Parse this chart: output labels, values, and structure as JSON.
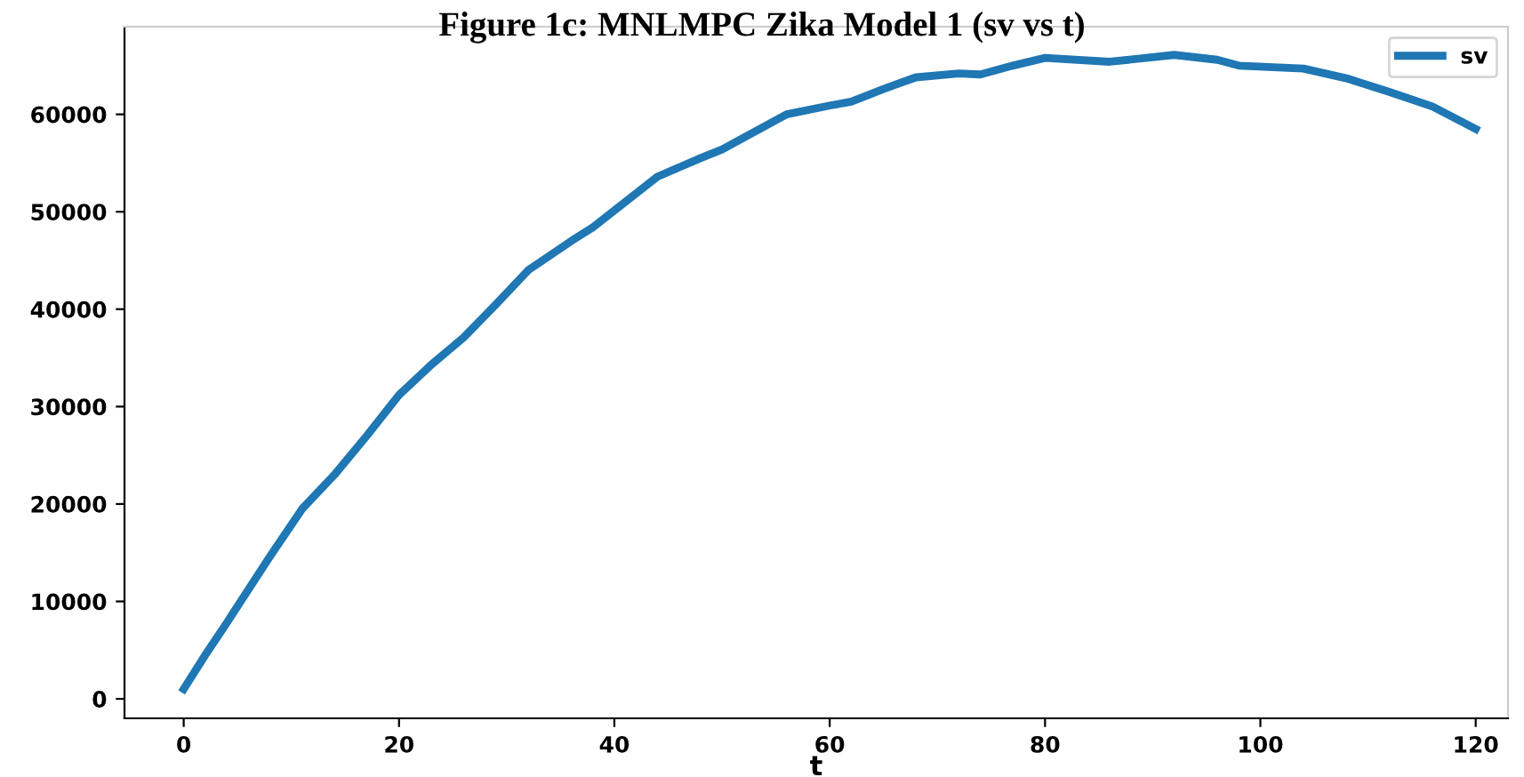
{
  "chart_data": {
    "type": "line",
    "title": "Figure 1c: MNLMPC Zika Model 1 (sv vs t)",
    "xlabel": "t",
    "x": [
      0,
      2,
      4,
      8,
      11,
      14,
      17,
      20,
      23,
      26,
      29,
      32,
      36,
      38,
      41,
      44,
      48,
      50,
      53,
      56,
      60,
      62,
      65,
      68,
      72,
      74,
      77,
      80,
      86,
      92,
      96,
      98,
      104,
      108,
      112,
      116,
      120
    ],
    "series": [
      {
        "name": "sv",
        "color": "#1f77b4",
        "values": [
          1000,
          4500,
          7800,
          14600,
          19500,
          23000,
          27000,
          31200,
          34300,
          37100,
          40500,
          44000,
          47000,
          48400,
          51000,
          53600,
          55500,
          56400,
          58200,
          60000,
          60900,
          61300,
          62600,
          63800,
          64200,
          64100,
          65000,
          65800,
          65400,
          66100,
          65600,
          65000,
          64700,
          63700,
          62300,
          60800,
          58500
        ]
      }
    ],
    "xlim": [
      -5.5,
      123
    ],
    "ylim": [
      -2000,
      69000
    ],
    "xticks": [
      0,
      20,
      40,
      60,
      80,
      100,
      120
    ],
    "yticks": [
      0,
      10000,
      20000,
      30000,
      40000,
      50000,
      60000
    ],
    "legend": "top right",
    "grid": false,
    "marker": "none",
    "line_style": "solid"
  }
}
